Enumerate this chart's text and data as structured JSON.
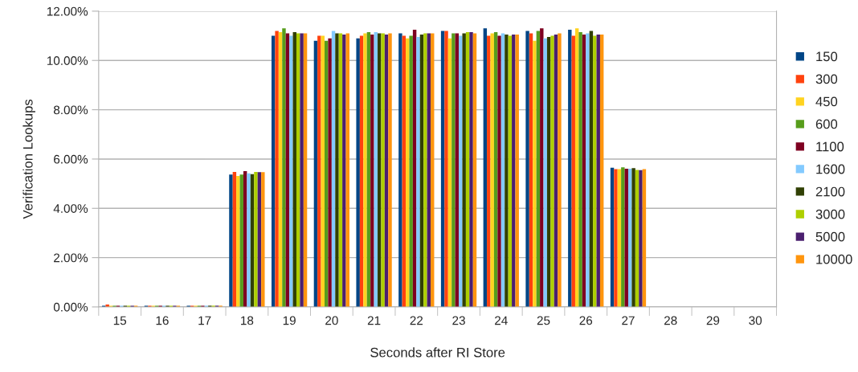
{
  "chart_data": {
    "type": "bar",
    "xlabel": "Seconds after RI Store",
    "ylabel": "Verification Lookups",
    "categories": [
      "15",
      "16",
      "17",
      "18",
      "19",
      "20",
      "21",
      "22",
      "23",
      "24",
      "25",
      "26",
      "27",
      "28",
      "29",
      "30"
    ],
    "ylim": [
      0,
      12
    ],
    "yticks": [
      {
        "value": 0,
        "label": "0.00%"
      },
      {
        "value": 2,
        "label": "2.00%"
      },
      {
        "value": 4,
        "label": "4.00%"
      },
      {
        "value": 6,
        "label": "6.00%"
      },
      {
        "value": 8,
        "label": "8.00%"
      },
      {
        "value": 10,
        "label": "10.00%"
      },
      {
        "value": 12,
        "label": "12.00%"
      }
    ],
    "grid": "y",
    "legend": "right",
    "series": [
      {
        "name": "150",
        "color": "#004586",
        "values": [
          0.05,
          0.05,
          0.05,
          5.37,
          11.0,
          10.8,
          10.9,
          11.1,
          11.2,
          11.3,
          11.2,
          11.25,
          5.65,
          0,
          0,
          0
        ]
      },
      {
        "name": "300",
        "color": "#ff420e",
        "values": [
          0.1,
          0.05,
          0.05,
          5.48,
          11.2,
          11.0,
          11.0,
          11.0,
          11.2,
          11.0,
          11.1,
          11.0,
          5.59,
          0,
          0,
          0
        ]
      },
      {
        "name": "450",
        "color": "#ffd320",
        "values": [
          0.05,
          0.05,
          0.05,
          5.31,
          11.15,
          11.0,
          11.1,
          10.9,
          10.9,
          11.1,
          10.8,
          11.3,
          5.59,
          0,
          0,
          0
        ]
      },
      {
        "name": "600",
        "color": "#579d1c",
        "values": [
          0.05,
          0.05,
          0.05,
          5.37,
          11.3,
          10.8,
          11.15,
          11.0,
          11.1,
          11.15,
          11.2,
          11.15,
          5.66,
          0,
          0,
          0
        ]
      },
      {
        "name": "1100",
        "color": "#7e0021",
        "values": [
          0.05,
          0.05,
          0.05,
          5.51,
          11.1,
          10.9,
          11.05,
          11.25,
          11.1,
          11.0,
          11.3,
          11.05,
          5.61,
          0,
          0,
          0
        ]
      },
      {
        "name": "1600",
        "color": "#83caff",
        "values": [
          0.05,
          0.05,
          0.05,
          5.42,
          11.0,
          11.2,
          11.15,
          10.95,
          11.0,
          11.1,
          10.9,
          11.1,
          5.61,
          0,
          0,
          0
        ]
      },
      {
        "name": "2100",
        "color": "#314004",
        "values": [
          0.05,
          0.05,
          0.05,
          5.39,
          11.15,
          11.1,
          11.1,
          11.05,
          11.1,
          11.05,
          10.95,
          11.2,
          5.63,
          0,
          0,
          0
        ]
      },
      {
        "name": "3000",
        "color": "#aecf00",
        "values": [
          0.05,
          0.05,
          0.05,
          5.48,
          11.1,
          11.1,
          11.1,
          11.1,
          11.15,
          11.0,
          11.0,
          11.0,
          5.56,
          0,
          0,
          0
        ]
      },
      {
        "name": "5000",
        "color": "#4b1f6f",
        "values": [
          0.05,
          0.05,
          0.05,
          5.47,
          11.1,
          11.05,
          11.05,
          11.1,
          11.15,
          11.05,
          11.05,
          11.05,
          5.55,
          0,
          0,
          0
        ]
      },
      {
        "name": "10000",
        "color": "#ff950e",
        "values": [
          0.05,
          0.05,
          0.05,
          5.47,
          11.1,
          11.1,
          11.1,
          11.1,
          11.1,
          11.05,
          11.1,
          11.05,
          5.59,
          0,
          0,
          0
        ]
      }
    ]
  }
}
